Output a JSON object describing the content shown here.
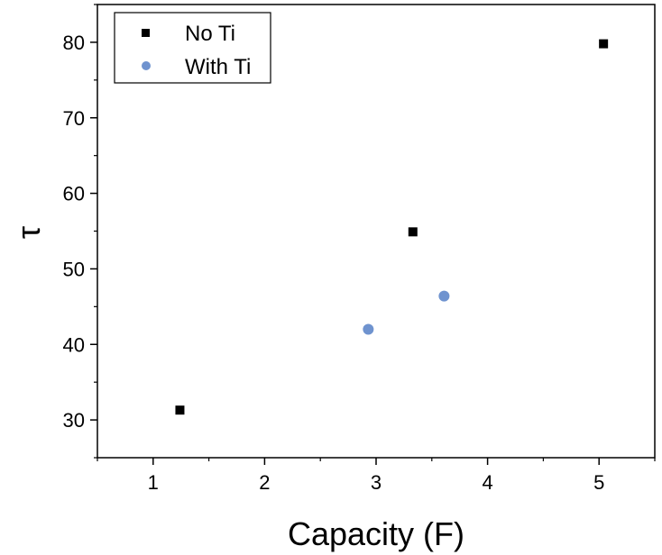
{
  "chart_data": {
    "type": "scatter",
    "xlabel": "Capacity (F)",
    "ylabel": "τ",
    "xlim": [
      0.5,
      5.5
    ],
    "ylim": [
      25,
      85
    ],
    "xticks": [
      1,
      2,
      3,
      4,
      5
    ],
    "yticks": [
      30,
      40,
      50,
      60,
      70,
      80
    ],
    "xtick_labels": [
      "1",
      "2",
      "3",
      "4",
      "5"
    ],
    "ytick_labels": [
      "30",
      "40",
      "50",
      "60",
      "70",
      "80"
    ],
    "grid": false,
    "legend_position": "top-left",
    "series": [
      {
        "name": "No Ti",
        "marker": "square",
        "color": "#000000",
        "points": [
          {
            "x": 1.24,
            "y": 31.3
          },
          {
            "x": 3.33,
            "y": 54.9
          },
          {
            "x": 5.04,
            "y": 79.8
          }
        ]
      },
      {
        "name": "With Ti",
        "marker": "circle",
        "color": "#6f93cf",
        "points": [
          {
            "x": 2.93,
            "y": 42.0
          },
          {
            "x": 3.61,
            "y": 46.4
          }
        ]
      }
    ]
  }
}
